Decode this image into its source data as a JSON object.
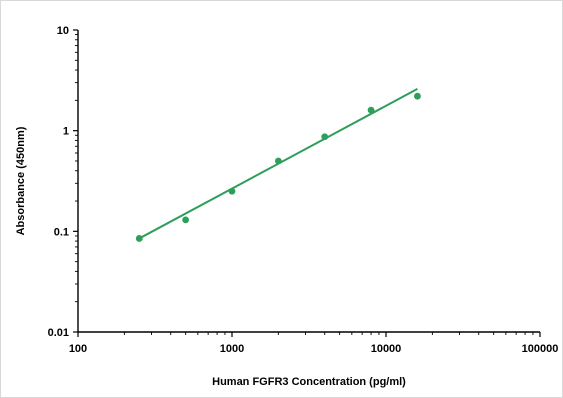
{
  "chart_data": {
    "type": "scatter",
    "xlabel": "Human FGFR3 Concentration (pg/ml)",
    "ylabel": "Absorbance (450nm)",
    "xscale": "log",
    "yscale": "log",
    "xlim": [
      100,
      100000
    ],
    "ylim": [
      0.01,
      10
    ],
    "x_tick_labels": [
      "100",
      "1000",
      "10000",
      "100000"
    ],
    "y_tick_labels": [
      "0.01",
      "0.1",
      "1",
      "10"
    ],
    "x_ticks": [
      100,
      1000,
      10000,
      100000
    ],
    "y_ticks": [
      0.01,
      0.1,
      1,
      10
    ],
    "grid": false,
    "series": [
      {
        "x": [
          250,
          500,
          1000,
          2000,
          4000,
          8000,
          16000
        ],
        "y": [
          0.085,
          0.13,
          0.25,
          0.5,
          0.87,
          1.6,
          2.2
        ],
        "color": "#2e9e5b",
        "marker": "circle"
      }
    ],
    "fit_line": {
      "x": [
        250,
        16000
      ],
      "y": [
        0.085,
        2.6
      ],
      "color": "#2e9e5b"
    }
  }
}
